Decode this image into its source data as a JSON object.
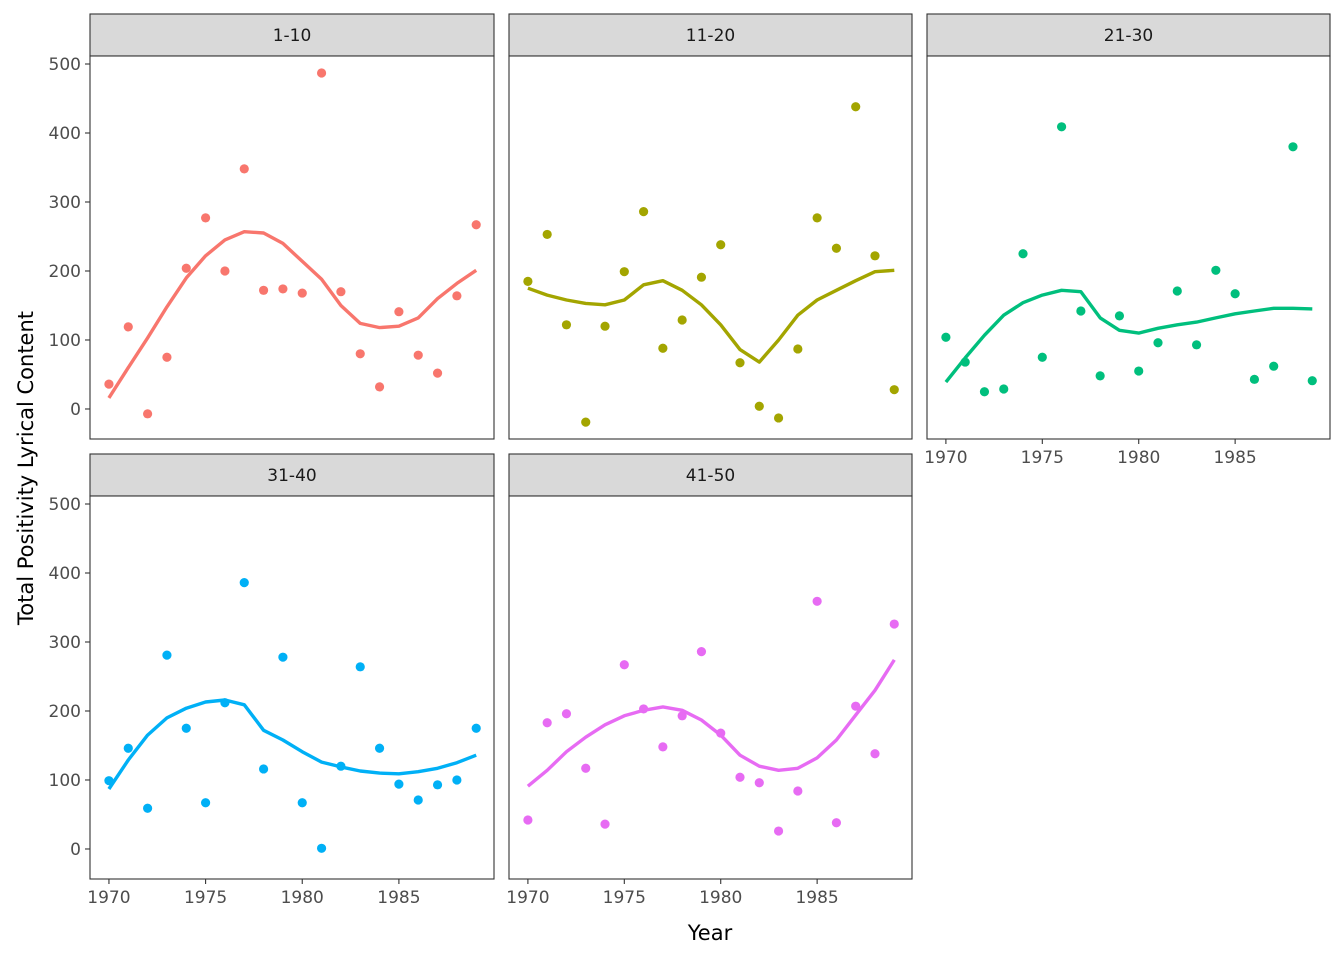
{
  "chart_data": {
    "type": "scatter",
    "title": "",
    "xlabel": "Year",
    "ylabel": "Total Positivity Lyrical Content",
    "xlim": [
      1969.02,
      1989.92
    ],
    "ylim": [
      -43.5,
      511.6
    ],
    "x_ticks": [
      1970,
      1975,
      1980,
      1985
    ],
    "y_ticks": [
      0,
      100,
      200,
      300,
      400,
      500
    ],
    "grid": false,
    "legend": "none",
    "x": [
      1970,
      1971,
      1972,
      1973,
      1974,
      1975,
      1976,
      1977,
      1978,
      1979,
      1980,
      1981,
      1982,
      1983,
      1984,
      1985,
      1986,
      1987,
      1988,
      1989
    ],
    "facets": [
      {
        "name": "1-10",
        "color": "#F8766D",
        "values": [
          36,
          119,
          -7,
          75,
          204,
          277,
          200,
          348,
          172,
          174,
          168,
          487,
          170,
          80,
          32,
          141,
          78,
          52,
          164,
          267
        ],
        "smooth": [
          16,
          60,
          103,
          148,
          190,
          222,
          245,
          257,
          255,
          240,
          214,
          188,
          150,
          124,
          118,
          120,
          132,
          160,
          182,
          201
        ]
      },
      {
        "name": "11-20",
        "color": "#A3A500",
        "values": [
          185,
          253,
          122,
          -19,
          120,
          199,
          286,
          88,
          129,
          191,
          238,
          67,
          4,
          -13,
          87,
          277,
          233,
          438,
          222,
          28
        ],
        "smooth": [
          175,
          165,
          158,
          153,
          151,
          158,
          180,
          186,
          172,
          151,
          122,
          86,
          68,
          100,
          136,
          158,
          172,
          186,
          199,
          201
        ]
      },
      {
        "name": "21-30",
        "color": "#00BF7D",
        "values": [
          104,
          68,
          25,
          29,
          225,
          75,
          409,
          142,
          48,
          135,
          55,
          96,
          171,
          93,
          201,
          167,
          43,
          62,
          380,
          41
        ],
        "smooth": [
          39,
          74,
          107,
          136,
          154,
          165,
          172,
          170,
          132,
          114,
          110,
          117,
          122,
          126,
          132,
          138,
          142,
          146,
          146,
          145
        ]
      },
      {
        "name": "31-40",
        "color": "#00B0F6",
        "values": [
          99,
          146,
          59,
          281,
          175,
          67,
          212,
          386,
          116,
          278,
          67,
          1,
          120,
          264,
          146,
          94,
          71,
          93,
          100,
          175
        ],
        "smooth": [
          87,
          129,
          165,
          190,
          204,
          213,
          216,
          209,
          172,
          158,
          141,
          126,
          119,
          113,
          110,
          109,
          112,
          117,
          125,
          136
        ]
      },
      {
        "name": "41-50",
        "color": "#E76BF3",
        "values": [
          42,
          183,
          196,
          117,
          36,
          267,
          203,
          148,
          193,
          286,
          168,
          104,
          96,
          26,
          84,
          359,
          38,
          207,
          138,
          326
        ],
        "smooth": [
          91,
          114,
          141,
          162,
          180,
          193,
          201,
          206,
          201,
          187,
          165,
          136,
          120,
          114,
          117,
          132,
          158,
          194,
          230,
          274
        ]
      }
    ]
  }
}
